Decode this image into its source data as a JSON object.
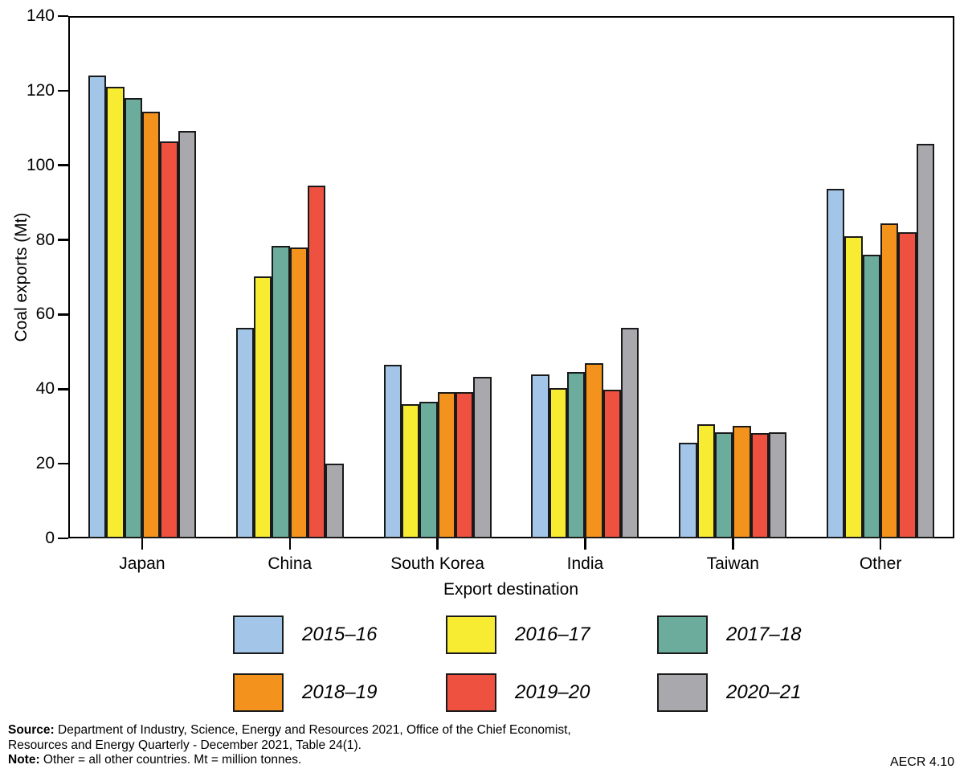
{
  "chart_data": {
    "type": "bar",
    "title": "",
    "xlabel": "Export destination",
    "ylabel": "Coal exports (Mt)",
    "ylim": [
      0,
      140
    ],
    "y_ticks": [
      0,
      20,
      40,
      60,
      80,
      100,
      120,
      140
    ],
    "grid": false,
    "legend_position": "bottom",
    "categories": [
      "Japan",
      "China",
      "South Korea",
      "India",
      "Taiwan",
      "Other"
    ],
    "series": [
      {
        "name": "2015–16",
        "color": "#A3C6E8",
        "values": [
          124.0,
          56.5,
          46.5,
          44.0,
          25.6,
          93.8
        ]
      },
      {
        "name": "2016–17",
        "color": "#F8EC33",
        "values": [
          121.0,
          70.2,
          36.0,
          40.3,
          30.6,
          81.0
        ]
      },
      {
        "name": "2017–18",
        "color": "#6CAC9C",
        "values": [
          118.0,
          78.4,
          36.6,
          44.5,
          28.5,
          76.1
        ]
      },
      {
        "name": "2018–19",
        "color": "#F3931E",
        "values": [
          114.4,
          78.0,
          39.1,
          47.0,
          30.1,
          84.4
        ]
      },
      {
        "name": "2019–20",
        "color": "#EE5140",
        "values": [
          106.5,
          94.5,
          39.1,
          39.8,
          28.2,
          82.1
        ]
      },
      {
        "name": "2020–21",
        "color": "#A9A8AC",
        "values": [
          109.3,
          20.1,
          43.4,
          56.4,
          28.4,
          105.8
        ]
      }
    ]
  },
  "footer": {
    "source_label": "Source:",
    "source_text": " Department of Industry, Science, Energy and Resources 2021, Office of the Chief Economist,",
    "source_text_line2": "Resources and Energy Quarterly - December 2021, Table 24(1).",
    "note_label": "Note:",
    "note_text": " Other = all other countries. Mt = million tonnes.",
    "figure_ref": "AECR 4.10"
  }
}
